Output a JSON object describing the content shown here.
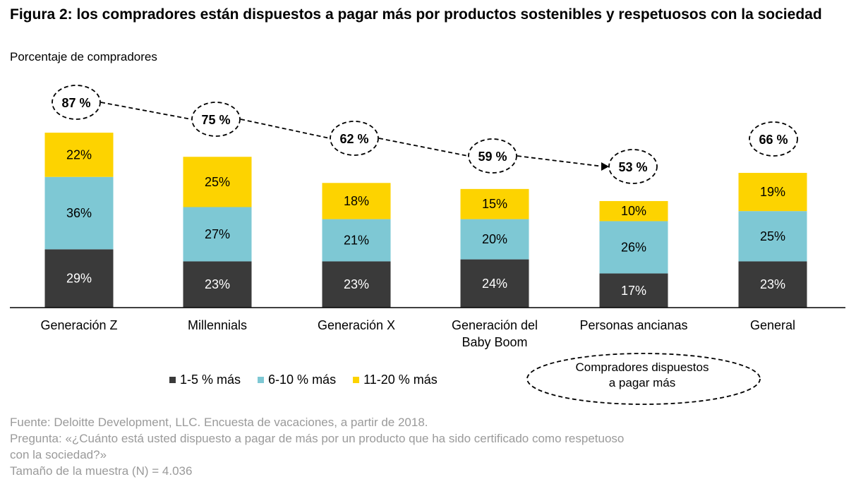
{
  "title": "Figura 2: los compradores están dispuestos a pagar más por productos sostenibles y respetuosos con la sociedad",
  "subtitle": "Porcentaje de compradores",
  "legend": {
    "items": [
      {
        "label": "1-5 % más",
        "color": "#3a3a3a"
      },
      {
        "label": "6-10 % más",
        "color": "#7ec8d4"
      },
      {
        "label": "11-20 % más",
        "color": "#fdd300"
      }
    ],
    "willing_label_line1": "Compradores dispuestos",
    "willing_label_line2": "a pagar más"
  },
  "chart_data": {
    "type": "bar",
    "stacked": true,
    "categories": [
      "Generación Z",
      "Millennials",
      "Generación X",
      "Generación del Baby Boom",
      "Personas ancianas",
      "General"
    ],
    "category_lines": [
      [
        "Generación Z"
      ],
      [
        "Millennials"
      ],
      [
        "Generación X"
      ],
      [
        "Generación del",
        "Baby Boom"
      ],
      [
        "Personas ancianas"
      ],
      [
        "General"
      ]
    ],
    "series": [
      {
        "name": "1-5 % más",
        "values": [
          29,
          23,
          23,
          24,
          17,
          23
        ],
        "labels": [
          "29%",
          "23%",
          "23%",
          "24%",
          "17%",
          "23%"
        ],
        "color": "#3a3a3a",
        "label_color": "#ffffff"
      },
      {
        "name": "6-10 % más",
        "values": [
          36,
          27,
          21,
          20,
          26,
          25
        ],
        "labels": [
          "36%",
          "27%",
          "21%",
          "20%",
          "26%",
          "25%"
        ],
        "color": "#7ec8d4",
        "label_color": "#000000"
      },
      {
        "name": "11-20 % más",
        "values": [
          22,
          25,
          18,
          15,
          10,
          19
        ],
        "labels": [
          "22%",
          "25%",
          "18%",
          "15%",
          "10%",
          "19%"
        ],
        "color": "#fdd300",
        "label_color": "#000000"
      }
    ],
    "totals": [
      87,
      75,
      62,
      59,
      53,
      66
    ],
    "total_labels": [
      "87 %",
      "75 %",
      "62 %",
      "59 %",
      "53 %",
      "66 %"
    ],
    "total_series_name": "Compradores dispuestos a pagar más",
    "trend_arrow_from": 0,
    "trend_arrow_to": 4
  },
  "footer": {
    "source": "Fuente: Deloitte Development, LLC. Encuesta de vacaciones, a partir de 2018.",
    "question_line1": "Pregunta: «¿Cuánto está usted dispuesto a pagar de más por un producto que ha sido certificado como respetuoso",
    "question_line2": "con la sociedad?»",
    "sample": "Tamaño de la muestra (N) = 4.036"
  }
}
